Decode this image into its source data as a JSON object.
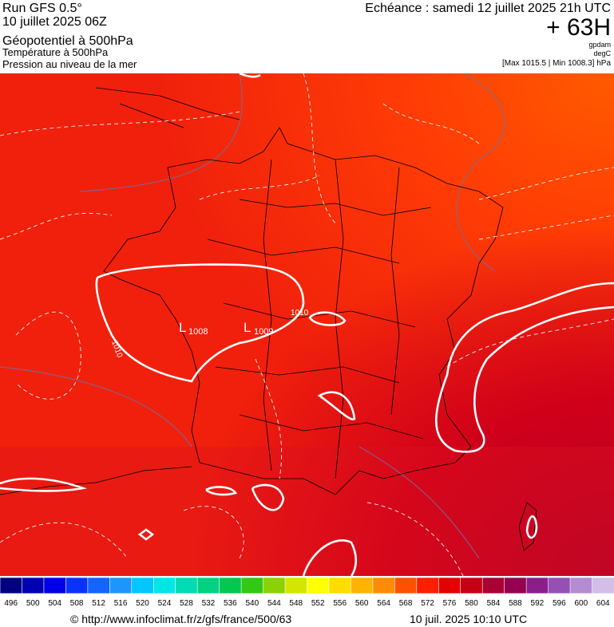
{
  "header": {
    "run": "Run GFS 0.5°",
    "run_date": "10 juillet 2025 06Z",
    "field_1": "Géopotentiel à 500hPa",
    "field_2": "Température à 500hPa",
    "field_3": "Pression au niveau de la mer",
    "valid_time": "Echéance : samedi 12 juillet 2025 21h UTC",
    "lead": "+ 63H",
    "unit_1": "gpdam",
    "unit_2": "degC",
    "range": "[Max 1015.5 | Min 1008.3] hPa"
  },
  "map_labels": [
    {
      "symbol": "L",
      "value": "1008"
    },
    {
      "symbol": "L",
      "value": "1009"
    },
    {
      "value": "1010"
    },
    {
      "value": "1010"
    }
  ],
  "colorbar": {
    "ticks": [
      496,
      500,
      504,
      508,
      512,
      516,
      520,
      524,
      528,
      532,
      536,
      540,
      544,
      548,
      552,
      556,
      560,
      564,
      568,
      572,
      576,
      580,
      584,
      588,
      592,
      596,
      600,
      604
    ],
    "colors": [
      "#000080",
      "#0000b4",
      "#0000e6",
      "#0a32ff",
      "#1464ff",
      "#1e96ff",
      "#00c8ff",
      "#00e6e6",
      "#00dcb4",
      "#00d282",
      "#00c850",
      "#32c814",
      "#8cd200",
      "#d2e600",
      "#ffff00",
      "#ffdc00",
      "#ffb400",
      "#ff8c00",
      "#ff5000",
      "#ff1e00",
      "#e60000",
      "#c80014",
      "#aa0032",
      "#960050",
      "#8c1e8c",
      "#9650b4",
      "#b48cd2",
      "#d2bee6"
    ]
  },
  "footer": {
    "url": "© http://www.infoclimat.fr/z/gfs/france/500/63",
    "timestamp": "10 juil. 2025 10:10 UTC"
  }
}
